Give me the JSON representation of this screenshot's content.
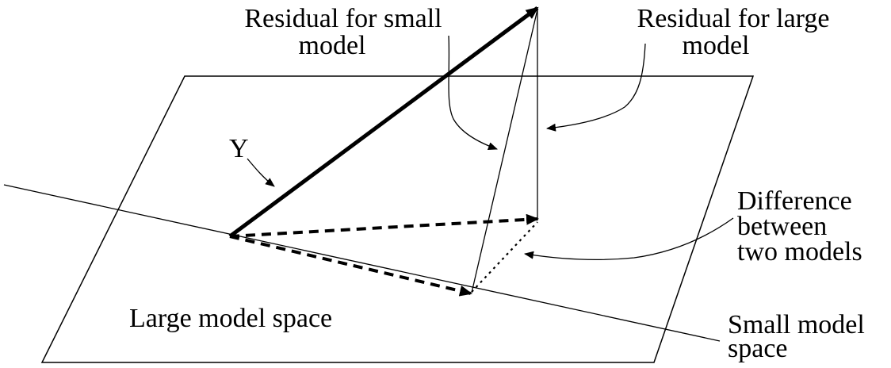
{
  "labels": {
    "residual_small_line1": "Residual for small",
    "residual_small_line2": "model",
    "residual_large_line1": "Residual for large",
    "residual_large_line2": "model",
    "y_vector": "Y",
    "difference_line1": "Difference",
    "difference_line2": "between",
    "difference_line3": "two models",
    "large_model_space": "Large model space",
    "small_model_space_line1": "Small model",
    "small_model_space_line2": "space"
  },
  "colors": {
    "ink": "#000000",
    "background": "#ffffff"
  }
}
